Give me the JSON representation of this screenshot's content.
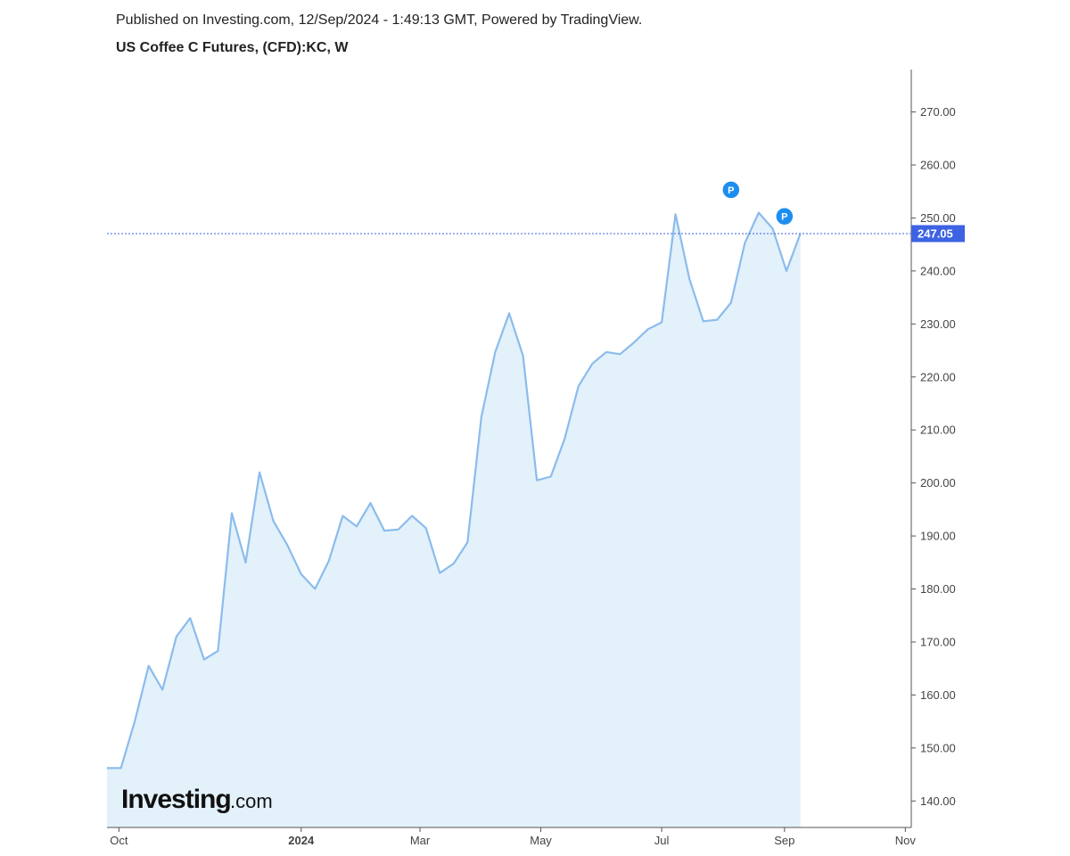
{
  "header": {
    "published": "Published on Investing.com, 12/Sep/2024 - 1:49:13 GMT, Powered by TradingView.",
    "title": "US Coffee C Futures, (CFD):KC, W"
  },
  "logo": {
    "main": "Investing",
    "suffix": ".com"
  },
  "colors": {
    "line": "#8bbcec",
    "area": "#e3f1fb",
    "last_price": "#3d63e3",
    "marker": "#1d8ef0",
    "axis": "#555555"
  },
  "chart_data": {
    "type": "area",
    "title": "US Coffee C Futures, (CFD):KC, W",
    "xlabel": "",
    "ylabel": "",
    "ylim": [
      135,
      278
    ],
    "x_start": "2023-09-25",
    "x_end": "2024-11-04",
    "x_ticks": [
      {
        "date": "2023-10-01",
        "label": "Oct",
        "bold": false
      },
      {
        "date": "2024-01-01",
        "label": "2024",
        "bold": true
      },
      {
        "date": "2024-03-01",
        "label": "Mar",
        "bold": false
      },
      {
        "date": "2024-05-01",
        "label": "May",
        "bold": false
      },
      {
        "date": "2024-07-01",
        "label": "Jul",
        "bold": false
      },
      {
        "date": "2024-09-01",
        "label": "Sep",
        "bold": false
      },
      {
        "date": "2024-11-01",
        "label": "Nov",
        "bold": false
      }
    ],
    "y_ticks": [
      "140.00",
      "150.00",
      "160.00",
      "170.00",
      "180.00",
      "190.00",
      "200.00",
      "210.00",
      "220.00",
      "230.00",
      "240.00",
      "250.00",
      "260.00",
      "270.00"
    ],
    "last_price": "247.05",
    "markers": [
      {
        "date": "2024-08-05",
        "value": 255.3,
        "label": "P"
      },
      {
        "date": "2024-09-01",
        "value": 250.3,
        "label": "P"
      }
    ],
    "series": [
      {
        "points": [
          [
            "2023-09-25",
            146.2
          ],
          [
            "2023-10-02",
            146.2
          ],
          [
            "2023-10-09",
            155.0
          ],
          [
            "2023-10-16",
            165.5
          ],
          [
            "2023-10-23",
            161.0
          ],
          [
            "2023-10-30",
            171.0
          ],
          [
            "2023-11-06",
            174.5
          ],
          [
            "2023-11-13",
            166.7
          ],
          [
            "2023-11-20",
            168.3
          ],
          [
            "2023-11-27",
            194.3
          ],
          [
            "2023-12-04",
            185.0
          ],
          [
            "2023-12-11",
            202.0
          ],
          [
            "2023-12-18",
            192.8
          ],
          [
            "2023-12-25",
            188.3
          ],
          [
            "2024-01-01",
            182.8
          ],
          [
            "2024-01-08",
            180.0
          ],
          [
            "2024-01-15",
            185.3
          ],
          [
            "2024-01-22",
            193.8
          ],
          [
            "2024-01-29",
            191.8
          ],
          [
            "2024-02-05",
            196.2
          ],
          [
            "2024-02-12",
            191.0
          ],
          [
            "2024-02-19",
            191.2
          ],
          [
            "2024-02-26",
            193.8
          ],
          [
            "2024-03-04",
            191.5
          ],
          [
            "2024-03-11",
            183.0
          ],
          [
            "2024-03-18",
            184.8
          ],
          [
            "2024-03-25",
            188.8
          ],
          [
            "2024-04-01",
            212.5
          ],
          [
            "2024-04-08",
            224.7
          ],
          [
            "2024-04-15",
            232.0
          ],
          [
            "2024-04-22",
            224.0
          ],
          [
            "2024-04-29",
            200.5
          ],
          [
            "2024-05-06",
            201.2
          ],
          [
            "2024-05-13",
            208.3
          ],
          [
            "2024-05-20",
            218.3
          ],
          [
            "2024-05-27",
            222.5
          ],
          [
            "2024-06-03",
            224.7
          ],
          [
            "2024-06-10",
            224.3
          ],
          [
            "2024-06-17",
            226.5
          ],
          [
            "2024-06-24",
            229.0
          ],
          [
            "2024-07-01",
            230.3
          ],
          [
            "2024-07-08",
            250.7
          ],
          [
            "2024-07-15",
            238.5
          ],
          [
            "2024-07-22",
            230.5
          ],
          [
            "2024-07-29",
            230.8
          ],
          [
            "2024-08-05",
            234.0
          ],
          [
            "2024-08-12",
            245.3
          ],
          [
            "2024-08-19",
            251.0
          ],
          [
            "2024-08-26",
            248.0
          ],
          [
            "2024-09-02",
            240.0
          ],
          [
            "2024-09-09",
            247.05
          ]
        ]
      }
    ]
  }
}
